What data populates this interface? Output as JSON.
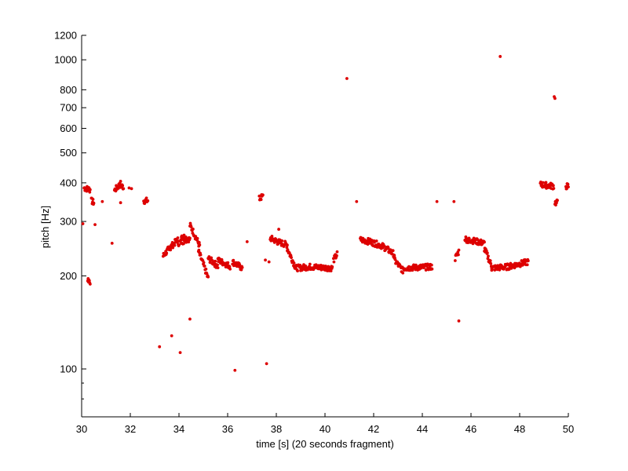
{
  "chart_data": {
    "type": "scatter",
    "xlabel": "time [s] (20 seconds fragment)",
    "ylabel": "pitch [Hz]",
    "xlim": [
      30,
      50
    ],
    "ylim": [
      70,
      1200
    ],
    "yscale": "log",
    "grid": false,
    "marker_color": "#dd0000",
    "x_ticks": [
      30,
      32,
      34,
      36,
      38,
      40,
      42,
      44,
      46,
      48,
      50
    ],
    "x_tick_labels": [
      "30",
      "32",
      "34",
      "36",
      "38",
      "40",
      "42",
      "44",
      "46",
      "48",
      "50"
    ],
    "y_ticks": [
      100,
      200,
      300,
      400,
      500,
      600,
      700,
      800,
      1000,
      1200
    ],
    "y_tick_labels": [
      "100",
      "200",
      "300",
      "400",
      "500",
      "600",
      "700",
      "800",
      "1000",
      "1200"
    ],
    "y_minor_ticks": [
      70,
      80,
      90
    ],
    "segments": [
      {
        "t": [
          30.1,
          30.35
        ],
        "f": [
          385,
          380
        ]
      },
      {
        "t": [
          30.25,
          30.35
        ],
        "f": [
          195,
          192
        ]
      },
      {
        "t": [
          30.4,
          30.5
        ],
        "f": [
          350,
          345
        ]
      },
      {
        "t": [
          31.35,
          31.6
        ],
        "f": [
          378,
          397
        ]
      },
      {
        "t": [
          31.55,
          31.72
        ],
        "f": [
          393,
          388
        ]
      },
      {
        "t": [
          32.55,
          32.72
        ],
        "f": [
          350,
          350
        ]
      },
      {
        "t": [
          33.35,
          33.65
        ],
        "f": [
          232,
          248
        ]
      },
      {
        "t": [
          33.6,
          33.95
        ],
        "f": [
          245,
          262
        ]
      },
      {
        "t": [
          33.95,
          34.3
        ],
        "f": [
          255,
          262
        ]
      },
      {
        "t": [
          34.1,
          34.45
        ],
        "f": [
          270,
          262
        ]
      },
      {
        "t": [
          34.45,
          34.85
        ],
        "f": [
          292,
          250
        ]
      },
      {
        "t": [
          34.8,
          35.2
        ],
        "f": [
          240,
          196
        ]
      },
      {
        "t": [
          35.2,
          35.6
        ],
        "f": [
          228,
          215
        ]
      },
      {
        "t": [
          35.6,
          36.1
        ],
        "f": [
          225,
          215
        ]
      },
      {
        "t": [
          36.2,
          36.6
        ],
        "f": [
          222,
          212
        ]
      },
      {
        "t": [
          37.3,
          37.45
        ],
        "f": [
          355,
          362
        ]
      },
      {
        "t": [
          37.75,
          38.05
        ],
        "f": [
          265,
          258
        ]
      },
      {
        "t": [
          38.05,
          38.45
        ],
        "f": [
          258,
          252
        ]
      },
      {
        "t": [
          38.45,
          38.8
        ],
        "f": [
          245,
          212
        ]
      },
      {
        "t": [
          38.8,
          39.4
        ],
        "f": [
          212,
          214
        ]
      },
      {
        "t": [
          39.4,
          40.3
        ],
        "f": [
          214,
          212
        ]
      },
      {
        "t": [
          40.35,
          40.5
        ],
        "f": [
          225,
          235
        ]
      },
      {
        "t": [
          41.45,
          41.85
        ],
        "f": [
          262,
          258
        ]
      },
      {
        "t": [
          41.85,
          42.35
        ],
        "f": [
          258,
          250
        ]
      },
      {
        "t": [
          42.35,
          42.85
        ],
        "f": [
          250,
          235
        ]
      },
      {
        "t": [
          42.85,
          43.2
        ],
        "f": [
          225,
          208
        ]
      },
      {
        "t": [
          43.2,
          44.4
        ],
        "f": [
          212,
          214
        ]
      },
      {
        "t": [
          45.35,
          45.5
        ],
        "f": [
          228,
          240
        ]
      },
      {
        "t": [
          45.75,
          45.95
        ],
        "f": [
          265,
          258
        ]
      },
      {
        "t": [
          45.9,
          46.55
        ],
        "f": [
          262,
          255
        ]
      },
      {
        "t": [
          46.55,
          46.85
        ],
        "f": [
          245,
          215
        ]
      },
      {
        "t": [
          46.85,
          47.5
        ],
        "f": [
          212,
          214
        ]
      },
      {
        "t": [
          47.5,
          48.35
        ],
        "f": [
          214,
          222
        ]
      },
      {
        "t": [
          48.85,
          49.4
        ],
        "f": [
          395,
          390
        ]
      },
      {
        "t": [
          49.45,
          49.55
        ],
        "f": [
          345,
          345
        ]
      },
      {
        "t": [
          49.9,
          50.0
        ],
        "f": [
          390,
          390
        ]
      }
    ],
    "isolated_points": [
      {
        "t": 30.05,
        "f": 295
      },
      {
        "t": 30.55,
        "f": 293
      },
      {
        "t": 30.85,
        "f": 348
      },
      {
        "t": 31.25,
        "f": 255
      },
      {
        "t": 31.6,
        "f": 345
      },
      {
        "t": 31.95,
        "f": 385
      },
      {
        "t": 32.05,
        "f": 383
      },
      {
        "t": 33.2,
        "f": 118
      },
      {
        "t": 33.7,
        "f": 128
      },
      {
        "t": 34.05,
        "f": 113
      },
      {
        "t": 34.45,
        "f": 145
      },
      {
        "t": 36.3,
        "f": 99
      },
      {
        "t": 36.8,
        "f": 258
      },
      {
        "t": 37.6,
        "f": 104
      },
      {
        "t": 37.55,
        "f": 225
      },
      {
        "t": 37.7,
        "f": 222
      },
      {
        "t": 38.1,
        "f": 283
      },
      {
        "t": 40.9,
        "f": 870
      },
      {
        "t": 41.3,
        "f": 348
      },
      {
        "t": 44.6,
        "f": 348
      },
      {
        "t": 45.3,
        "f": 348
      },
      {
        "t": 45.5,
        "f": 143
      },
      {
        "t": 47.2,
        "f": 1025
      },
      {
        "t": 49.42,
        "f": 760
      },
      {
        "t": 49.45,
        "f": 750
      }
    ]
  }
}
